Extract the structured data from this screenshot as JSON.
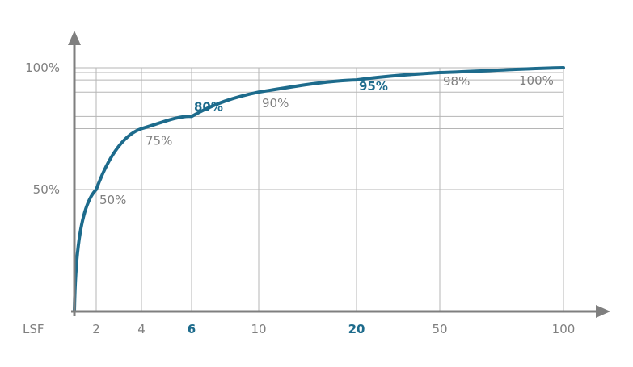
{
  "chart_data": {
    "type": "line",
    "title": "",
    "xlabel": "LSF",
    "ylabel": "",
    "x_ticks": [
      "2",
      "4",
      "6",
      "10",
      "20",
      "50",
      "100"
    ],
    "x_ticks_highlighted": [
      "6",
      "20"
    ],
    "y_ticks": [
      "50%",
      "100%"
    ],
    "ylim": [
      0,
      100
    ],
    "grid": true,
    "points": [
      {
        "x": "2",
        "y": 50,
        "label": "50%",
        "highlight": false
      },
      {
        "x": "4",
        "y": 75,
        "label": "75%",
        "highlight": false
      },
      {
        "x": "6",
        "y": 80,
        "label": "80%",
        "highlight": true
      },
      {
        "x": "10",
        "y": 90,
        "label": "90%",
        "highlight": false
      },
      {
        "x": "20",
        "y": 95,
        "label": "95%",
        "highlight": true
      },
      {
        "x": "50",
        "y": 98,
        "label": "98%",
        "highlight": false
      },
      {
        "x": "100",
        "y": 100,
        "label": "100%",
        "highlight": false
      }
    ],
    "colors": {
      "curve": "#1d6b8c",
      "axis": "#7f7f7f",
      "grid": "#b5b5b5",
      "highlight_text": "#1d6b8c",
      "text": "#7f7f7f"
    }
  }
}
